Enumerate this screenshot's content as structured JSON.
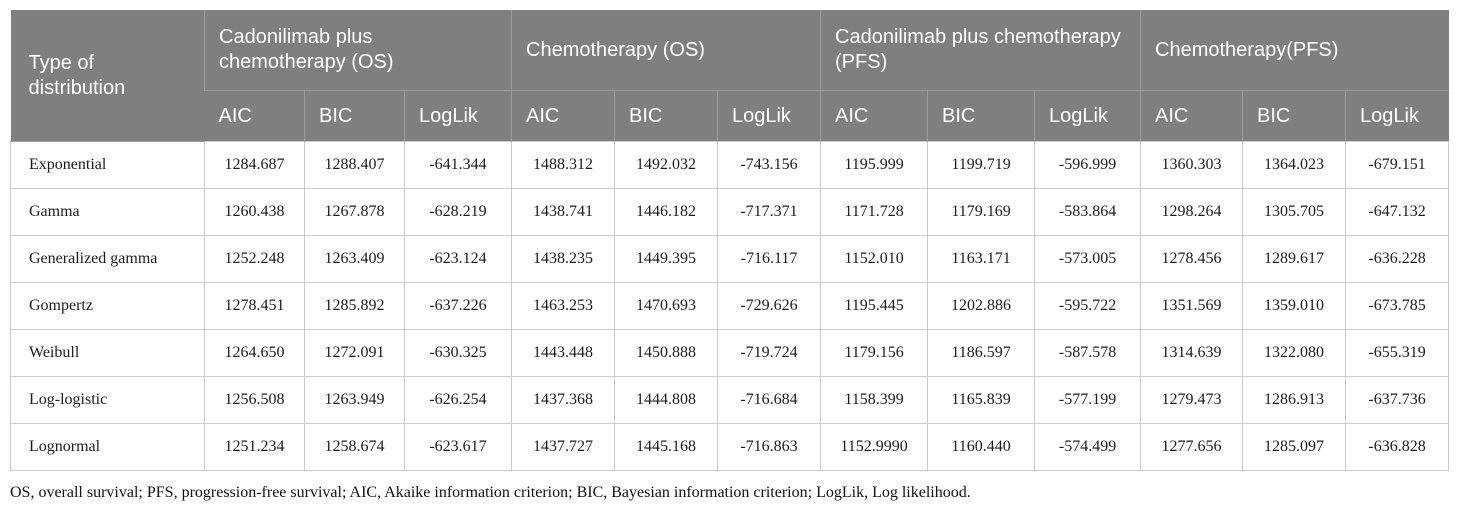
{
  "colors": {
    "header_bg": "#7f7f7f",
    "header_text": "#ffffff",
    "header_divider": "#9c9c9c",
    "body_border": "#cbcbcb",
    "body_text": "#1c1c1c"
  },
  "table": {
    "corner_label": "Type of distribution",
    "groups": [
      {
        "label": "Cadonilimab plus chemotherapy (OS)",
        "sub": [
          "AIC",
          "BIC",
          "LogLik"
        ]
      },
      {
        "label": "Chemotherapy (OS)",
        "sub": [
          "AIC",
          "BIC",
          "LogLik"
        ]
      },
      {
        "label": "Cadonilimab plus chemotherapy (PFS)",
        "sub": [
          "AIC",
          "BIC",
          "LogLik"
        ]
      },
      {
        "label": "Chemotherapy(PFS)",
        "sub": [
          "AIC",
          "BIC",
          "LogLik"
        ]
      }
    ],
    "rows": [
      {
        "label": "Exponential",
        "values": [
          "1284.687",
          "1288.407",
          "-641.344",
          "1488.312",
          "1492.032",
          "-743.156",
          "1195.999",
          "1199.719",
          "-596.999",
          "1360.303",
          "1364.023",
          "-679.151"
        ]
      },
      {
        "label": "Gamma",
        "values": [
          "1260.438",
          "1267.878",
          "-628.219",
          "1438.741",
          "1446.182",
          "-717.371",
          "1171.728",
          "1179.169",
          "-583.864",
          "1298.264",
          "1305.705",
          "-647.132"
        ]
      },
      {
        "label": "Generalized gamma",
        "values": [
          "1252.248",
          "1263.409",
          "-623.124",
          "1438.235",
          "1449.395",
          "-716.117",
          "1152.010",
          "1163.171",
          "-573.005",
          "1278.456",
          "1289.617",
          "-636.228"
        ]
      },
      {
        "label": "Gompertz",
        "values": [
          "1278.451",
          "1285.892",
          "-637.226",
          "1463.253",
          "1470.693",
          "-729.626",
          "1195.445",
          "1202.886",
          "-595.722",
          "1351.569",
          "1359.010",
          "-673.785"
        ]
      },
      {
        "label": "Weibull",
        "values": [
          "1264.650",
          "1272.091",
          "-630.325",
          "1443.448",
          "1450.888",
          "-719.724",
          "1179.156",
          "1186.597",
          "-587.578",
          "1314.639",
          "1322.080",
          "-655.319"
        ]
      },
      {
        "label": "Log-logistic",
        "values": [
          "1256.508",
          "1263.949",
          "-626.254",
          "1437.368",
          "1444.808",
          "-716.684",
          "1158.399",
          "1165.839",
          "-577.199",
          "1279.473",
          "1286.913",
          "-637.736"
        ]
      },
      {
        "label": "Lognormal",
        "values": [
          "1251.234",
          "1258.674",
          "-623.617",
          "1437.727",
          "1445.168",
          "-716.863",
          "1152.9990",
          "1160.440",
          "-574.499",
          "1277.656",
          "1285.097",
          "-636.828"
        ]
      }
    ]
  },
  "footnote": "OS, overall survival; PFS, progression-free survival; AIC, Akaike information criterion; BIC, Bayesian information criterion; LogLik, Log likelihood."
}
